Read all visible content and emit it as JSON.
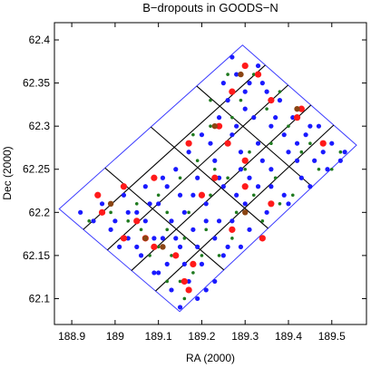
{
  "chart_data": {
    "type": "scatter",
    "title": "B−dropouts in GOODS−N",
    "xlabel": "RA (2000)",
    "ylabel": "Dec (2000)",
    "xlim": [
      188.86,
      189.58
    ],
    "ylim": [
      62.07,
      62.42
    ],
    "x_ticks": [
      188.9,
      189.0,
      189.1,
      189.2,
      189.3,
      189.4,
      189.5
    ],
    "y_ticks": [
      62.1,
      62.15,
      62.2,
      62.25,
      62.3,
      62.35,
      62.4
    ],
    "x_tick_labels": [
      "188.9",
      "189",
      "189.1",
      "189.2",
      "189.3",
      "189.4",
      "189.5"
    ],
    "y_tick_labels": [
      "62.1",
      "62.15",
      "62.2",
      "62.25",
      "62.3",
      "62.35",
      "62.4"
    ],
    "grid": false,
    "colors": {
      "blue": "#1a1aff",
      "green": "#1f7a1f",
      "red": "#ff1a1a",
      "brown": "#8b4513",
      "outline": "#3b3bff"
    },
    "survey_outline": [
      [
        189.294,
        62.394
      ],
      [
        189.557,
        62.278
      ],
      [
        189.149,
        62.085
      ],
      [
        188.871,
        62.204
      ]
    ],
    "mosaic_tiles_ra": [
      189.02,
      189.148,
      189.276,
      189.419
    ],
    "mosaic_tiles_dec": [
      62.183,
      62.236,
      62.288
    ],
    "series": [
      {
        "name": "blue",
        "points": [
          [
            189.33,
            62.37
          ],
          [
            189.31,
            62.35
          ],
          [
            189.28,
            62.36
          ],
          [
            189.35,
            62.34
          ],
          [
            189.26,
            62.33
          ],
          [
            189.3,
            62.32
          ],
          [
            189.38,
            62.33
          ],
          [
            189.41,
            62.31
          ],
          [
            189.24,
            62.31
          ],
          [
            189.36,
            62.3
          ],
          [
            189.44,
            62.29
          ],
          [
            189.47,
            62.3
          ],
          [
            189.2,
            62.29
          ],
          [
            189.27,
            62.29
          ],
          [
            189.33,
            62.28
          ],
          [
            189.5,
            62.28
          ],
          [
            189.53,
            62.27
          ],
          [
            189.17,
            62.27
          ],
          [
            189.23,
            62.26
          ],
          [
            189.4,
            62.27
          ],
          [
            189.46,
            62.26
          ],
          [
            189.14,
            62.25
          ],
          [
            189.29,
            62.25
          ],
          [
            189.36,
            62.25
          ],
          [
            189.11,
            62.24
          ],
          [
            189.19,
            62.24
          ],
          [
            189.43,
            62.24
          ],
          [
            189.49,
            62.25
          ],
          [
            189.07,
            62.23
          ],
          [
            189.15,
            62.22
          ],
          [
            189.25,
            62.23
          ],
          [
            189.33,
            62.23
          ],
          [
            189.39,
            62.22
          ],
          [
            189.02,
            62.22
          ],
          [
            189.1,
            62.21
          ],
          [
            189.21,
            62.21
          ],
          [
            189.3,
            62.21
          ],
          [
            189.45,
            62.23
          ],
          [
            188.97,
            62.21
          ],
          [
            189.05,
            62.2
          ],
          [
            189.13,
            62.19
          ],
          [
            189.27,
            62.19
          ],
          [
            189.35,
            62.2
          ],
          [
            188.92,
            62.2
          ],
          [
            189.0,
            62.19
          ],
          [
            189.18,
            62.18
          ],
          [
            189.23,
            62.17
          ],
          [
            189.31,
            62.18
          ],
          [
            189.4,
            62.21
          ],
          [
            189.03,
            62.17
          ],
          [
            189.09,
            62.17
          ],
          [
            189.15,
            62.16
          ],
          [
            189.26,
            62.16
          ],
          [
            189.06,
            62.15
          ],
          [
            189.12,
            62.14
          ],
          [
            189.2,
            62.14
          ],
          [
            189.29,
            62.16
          ],
          [
            189.09,
            62.13
          ],
          [
            189.17,
            62.12
          ],
          [
            189.23,
            62.12
          ],
          [
            189.13,
            62.11
          ],
          [
            189.19,
            62.1
          ],
          [
            189.15,
            62.09
          ],
          [
            189.1,
            62.13
          ],
          [
            189.05,
            62.16
          ],
          [
            188.99,
            62.18
          ],
          [
            189.22,
            62.28
          ],
          [
            189.28,
            62.3
          ],
          [
            189.32,
            62.31
          ],
          [
            189.37,
            62.31
          ],
          [
            189.42,
            62.28
          ],
          [
            189.48,
            62.27
          ],
          [
            189.52,
            62.26
          ],
          [
            189.34,
            62.26
          ],
          [
            189.31,
            62.24
          ],
          [
            189.24,
            62.24
          ],
          [
            189.18,
            62.22
          ],
          [
            189.12,
            62.23
          ],
          [
            189.08,
            62.21
          ],
          [
            189.03,
            62.2
          ],
          [
            188.95,
            62.19
          ],
          [
            189.01,
            62.16
          ],
          [
            189.14,
            62.17
          ],
          [
            189.21,
            62.19
          ],
          [
            189.28,
            62.22
          ],
          [
            189.36,
            62.23
          ],
          [
            189.42,
            62.26
          ],
          [
            189.16,
            62.14
          ],
          [
            189.25,
            62.15
          ],
          [
            189.21,
            62.11
          ],
          [
            189.3,
            62.34
          ],
          [
            189.27,
            62.38
          ],
          [
            189.34,
            62.35
          ],
          [
            189.25,
            62.35
          ],
          [
            189.39,
            62.29
          ],
          [
            189.45,
            62.3
          ],
          [
            189.29,
            62.27
          ],
          [
            189.16,
            62.2
          ],
          [
            189.07,
            62.19
          ],
          [
            189.11,
            62.17
          ],
          [
            189.19,
            62.16
          ],
          [
            189.24,
            62.19
          ]
        ]
      },
      {
        "name": "green",
        "points": [
          [
            189.32,
            62.36
          ],
          [
            189.29,
            62.33
          ],
          [
            189.35,
            62.32
          ],
          [
            189.27,
            62.31
          ],
          [
            189.4,
            62.3
          ],
          [
            189.22,
            62.3
          ],
          [
            189.43,
            62.27
          ],
          [
            189.31,
            62.27
          ],
          [
            189.19,
            62.26
          ],
          [
            189.47,
            62.25
          ],
          [
            189.26,
            62.24
          ],
          [
            189.15,
            62.24
          ],
          [
            189.37,
            62.24
          ],
          [
            189.52,
            62.27
          ],
          [
            189.1,
            62.22
          ],
          [
            189.22,
            62.22
          ],
          [
            189.32,
            62.22
          ],
          [
            189.41,
            62.22
          ],
          [
            189.05,
            62.21
          ],
          [
            189.17,
            62.2
          ],
          [
            189.28,
            62.2
          ],
          [
            188.99,
            62.2
          ],
          [
            189.12,
            62.18
          ],
          [
            189.21,
            62.18
          ],
          [
            189.34,
            62.19
          ],
          [
            188.94,
            62.19
          ],
          [
            189.06,
            62.18
          ],
          [
            189.16,
            62.17
          ],
          [
            189.27,
            62.17
          ],
          [
            189.1,
            62.16
          ],
          [
            189.2,
            62.15
          ],
          [
            189.24,
            62.15
          ],
          [
            189.13,
            62.15
          ],
          [
            189.18,
            62.13
          ],
          [
            189.15,
            62.12
          ],
          [
            189.12,
            62.12
          ],
          [
            189.16,
            62.1
          ],
          [
            189.08,
            62.15
          ],
          [
            189.03,
            62.19
          ],
          [
            189.23,
            62.25
          ],
          [
            189.36,
            62.28
          ],
          [
            189.45,
            62.28
          ],
          [
            189.38,
            62.34
          ],
          [
            189.26,
            62.36
          ],
          [
            189.22,
            62.33
          ],
          [
            189.18,
            62.29
          ],
          [
            189.5,
            62.25
          ],
          [
            189.12,
            62.2
          ],
          [
            189.3,
            62.25
          ],
          [
            189.38,
            62.21
          ]
        ]
      },
      {
        "name": "red",
        "points": [
          [
            189.3,
            62.37
          ],
          [
            189.33,
            62.36
          ],
          [
            189.27,
            62.34
          ],
          [
            189.24,
            62.3
          ],
          [
            189.43,
            62.32
          ],
          [
            189.42,
            62.31
          ],
          [
            189.36,
            62.33
          ],
          [
            189.17,
            62.28
          ],
          [
            189.26,
            62.28
          ],
          [
            189.48,
            62.28
          ],
          [
            189.3,
            62.26
          ],
          [
            189.23,
            62.24
          ],
          [
            189.09,
            62.24
          ],
          [
            189.02,
            62.23
          ],
          [
            189.2,
            62.22
          ],
          [
            188.96,
            62.22
          ],
          [
            188.97,
            62.2
          ],
          [
            189.05,
            62.19
          ],
          [
            189.02,
            62.17
          ],
          [
            189.07,
            62.17
          ],
          [
            189.09,
            62.16
          ],
          [
            189.14,
            62.15
          ],
          [
            189.18,
            62.14
          ],
          [
            189.27,
            62.18
          ],
          [
            189.36,
            62.21
          ],
          [
            189.34,
            62.17
          ],
          [
            189.3,
            62.23
          ],
          [
            189.16,
            62.12
          ],
          [
            189.17,
            62.11
          ]
        ]
      },
      {
        "name": "brown",
        "points": [
          [
            189.29,
            62.36
          ],
          [
            189.42,
            62.32
          ],
          [
            189.23,
            62.3
          ],
          [
            189.07,
            62.17
          ],
          [
            189.11,
            62.16
          ],
          [
            189.3,
            62.2
          ],
          [
            188.99,
            62.21
          ]
        ]
      }
    ]
  }
}
